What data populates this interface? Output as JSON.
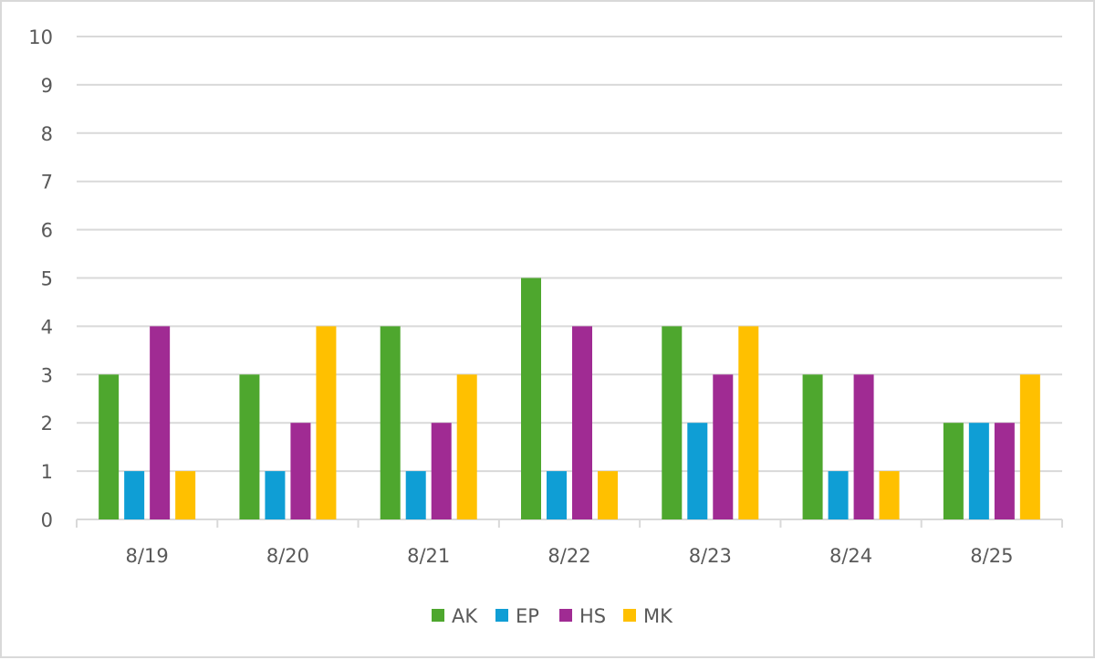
{
  "chart_data": {
    "type": "bar",
    "title": "",
    "xlabel": "",
    "ylabel": "",
    "categories": [
      "8/19",
      "8/20",
      "8/21",
      "8/22",
      "8/23",
      "8/24",
      "8/25"
    ],
    "series": [
      {
        "name": "AK",
        "color": "#4ea72e",
        "values": [
          3,
          3,
          4,
          5,
          4,
          3,
          2
        ]
      },
      {
        "name": "EP",
        "color": "#0f9ed5",
        "values": [
          1,
          1,
          1,
          1,
          2,
          1,
          2
        ]
      },
      {
        "name": "HS",
        "color": "#a02b93",
        "values": [
          4,
          2,
          2,
          4,
          3,
          3,
          2
        ]
      },
      {
        "name": "MK",
        "color": "#ffc000",
        "values": [
          1,
          4,
          3,
          1,
          4,
          1,
          3
        ]
      }
    ],
    "ylim": [
      0,
      10
    ],
    "yticks": [
      "0",
      "1",
      "2",
      "3",
      "4",
      "5",
      "6",
      "7",
      "8",
      "9",
      "10"
    ],
    "grid": true,
    "legend_position": "bottom"
  }
}
